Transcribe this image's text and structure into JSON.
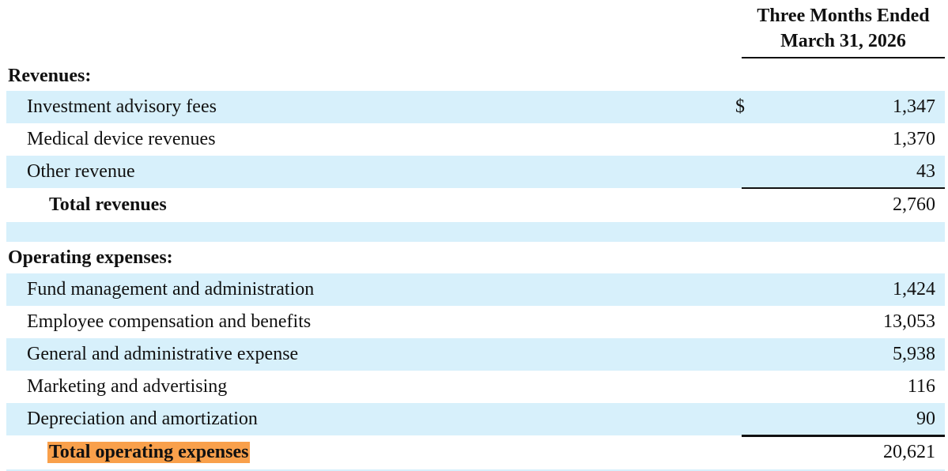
{
  "header": {
    "column_title": [
      "Three Months Ended",
      "March 31, 2026"
    ]
  },
  "table": {
    "sections": [
      {
        "title": "Revenues:",
        "rows": [
          {
            "label": "Investment advisory fees",
            "currency": "$",
            "value": "1,347"
          },
          {
            "label": "Medical device revenues",
            "value": "1,370"
          },
          {
            "label": "Other revenue",
            "value": "43"
          }
        ],
        "total": {
          "label": "Total revenues",
          "value": "2,760"
        }
      },
      {
        "title": "Operating expenses:",
        "rows": [
          {
            "label": "Fund management and administration",
            "value": "1,424"
          },
          {
            "label": "Employee compensation and benefits",
            "value": "13,053"
          },
          {
            "label": "General and administrative expense",
            "value": "5,938"
          },
          {
            "label": "Marketing and advertising",
            "value": "116"
          },
          {
            "label": "Depreciation and amortization",
            "value": "90"
          }
        ],
        "total": {
          "label": "Total operating expenses",
          "value": "20,621",
          "highlight": true
        }
      }
    ]
  }
}
